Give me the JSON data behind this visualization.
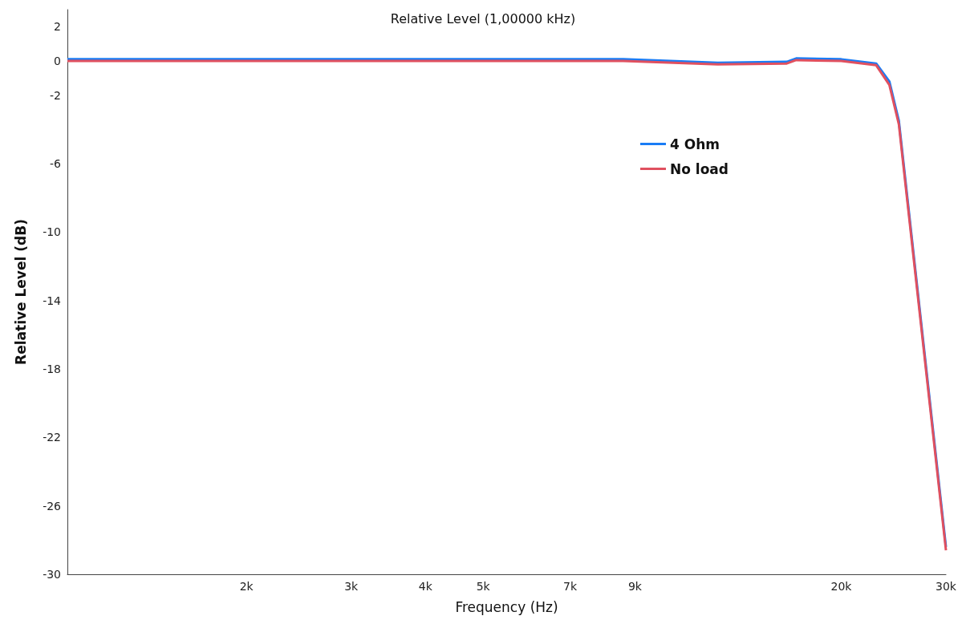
{
  "chart_data": {
    "type": "line",
    "title": "Relative Level (1,00000 kHz)",
    "xlabel": "Frequency (Hz)",
    "ylabel": "Relative Level (dB)",
    "log": "x",
    "grid": false,
    "legend": "top right",
    "line_style": "solid",
    "marker": "none",
    "xlim": [
      1000,
      30000
    ],
    "xticks": [
      {
        "value": 2000,
        "label": "2k"
      },
      {
        "value": 3000,
        "label": "3k"
      },
      {
        "value": 4000,
        "label": "4k"
      },
      {
        "value": 5000,
        "label": "5k"
      },
      {
        "value": 7000,
        "label": "7k"
      },
      {
        "value": 9000,
        "label": "9k"
      },
      {
        "value": 20000,
        "label": "20k"
      },
      {
        "value": 30000,
        "label": "30k"
      }
    ],
    "ylim": [
      -30,
      3
    ],
    "yticks": [
      2,
      0,
      -2,
      -6,
      -10,
      -14,
      -18,
      -22,
      -26,
      -30
    ],
    "x": [
      1000,
      8600,
      12400,
      16200,
      16800,
      20000,
      22900,
      24100,
      25000,
      30000
    ],
    "series": [
      {
        "name": "4 Ohm",
        "color": "#1a7cf5",
        "values": [
          0.1,
          0.1,
          -0.1,
          -0.05,
          0.15,
          0.1,
          -0.15,
          -1.2,
          -3.5,
          -28.4
        ]
      },
      {
        "name": "No load",
        "color": "#e0505f",
        "values": [
          0,
          0,
          -0.2,
          -0.15,
          0.05,
          0,
          -0.25,
          -1.4,
          -3.7,
          -28.6
        ]
      }
    ]
  }
}
